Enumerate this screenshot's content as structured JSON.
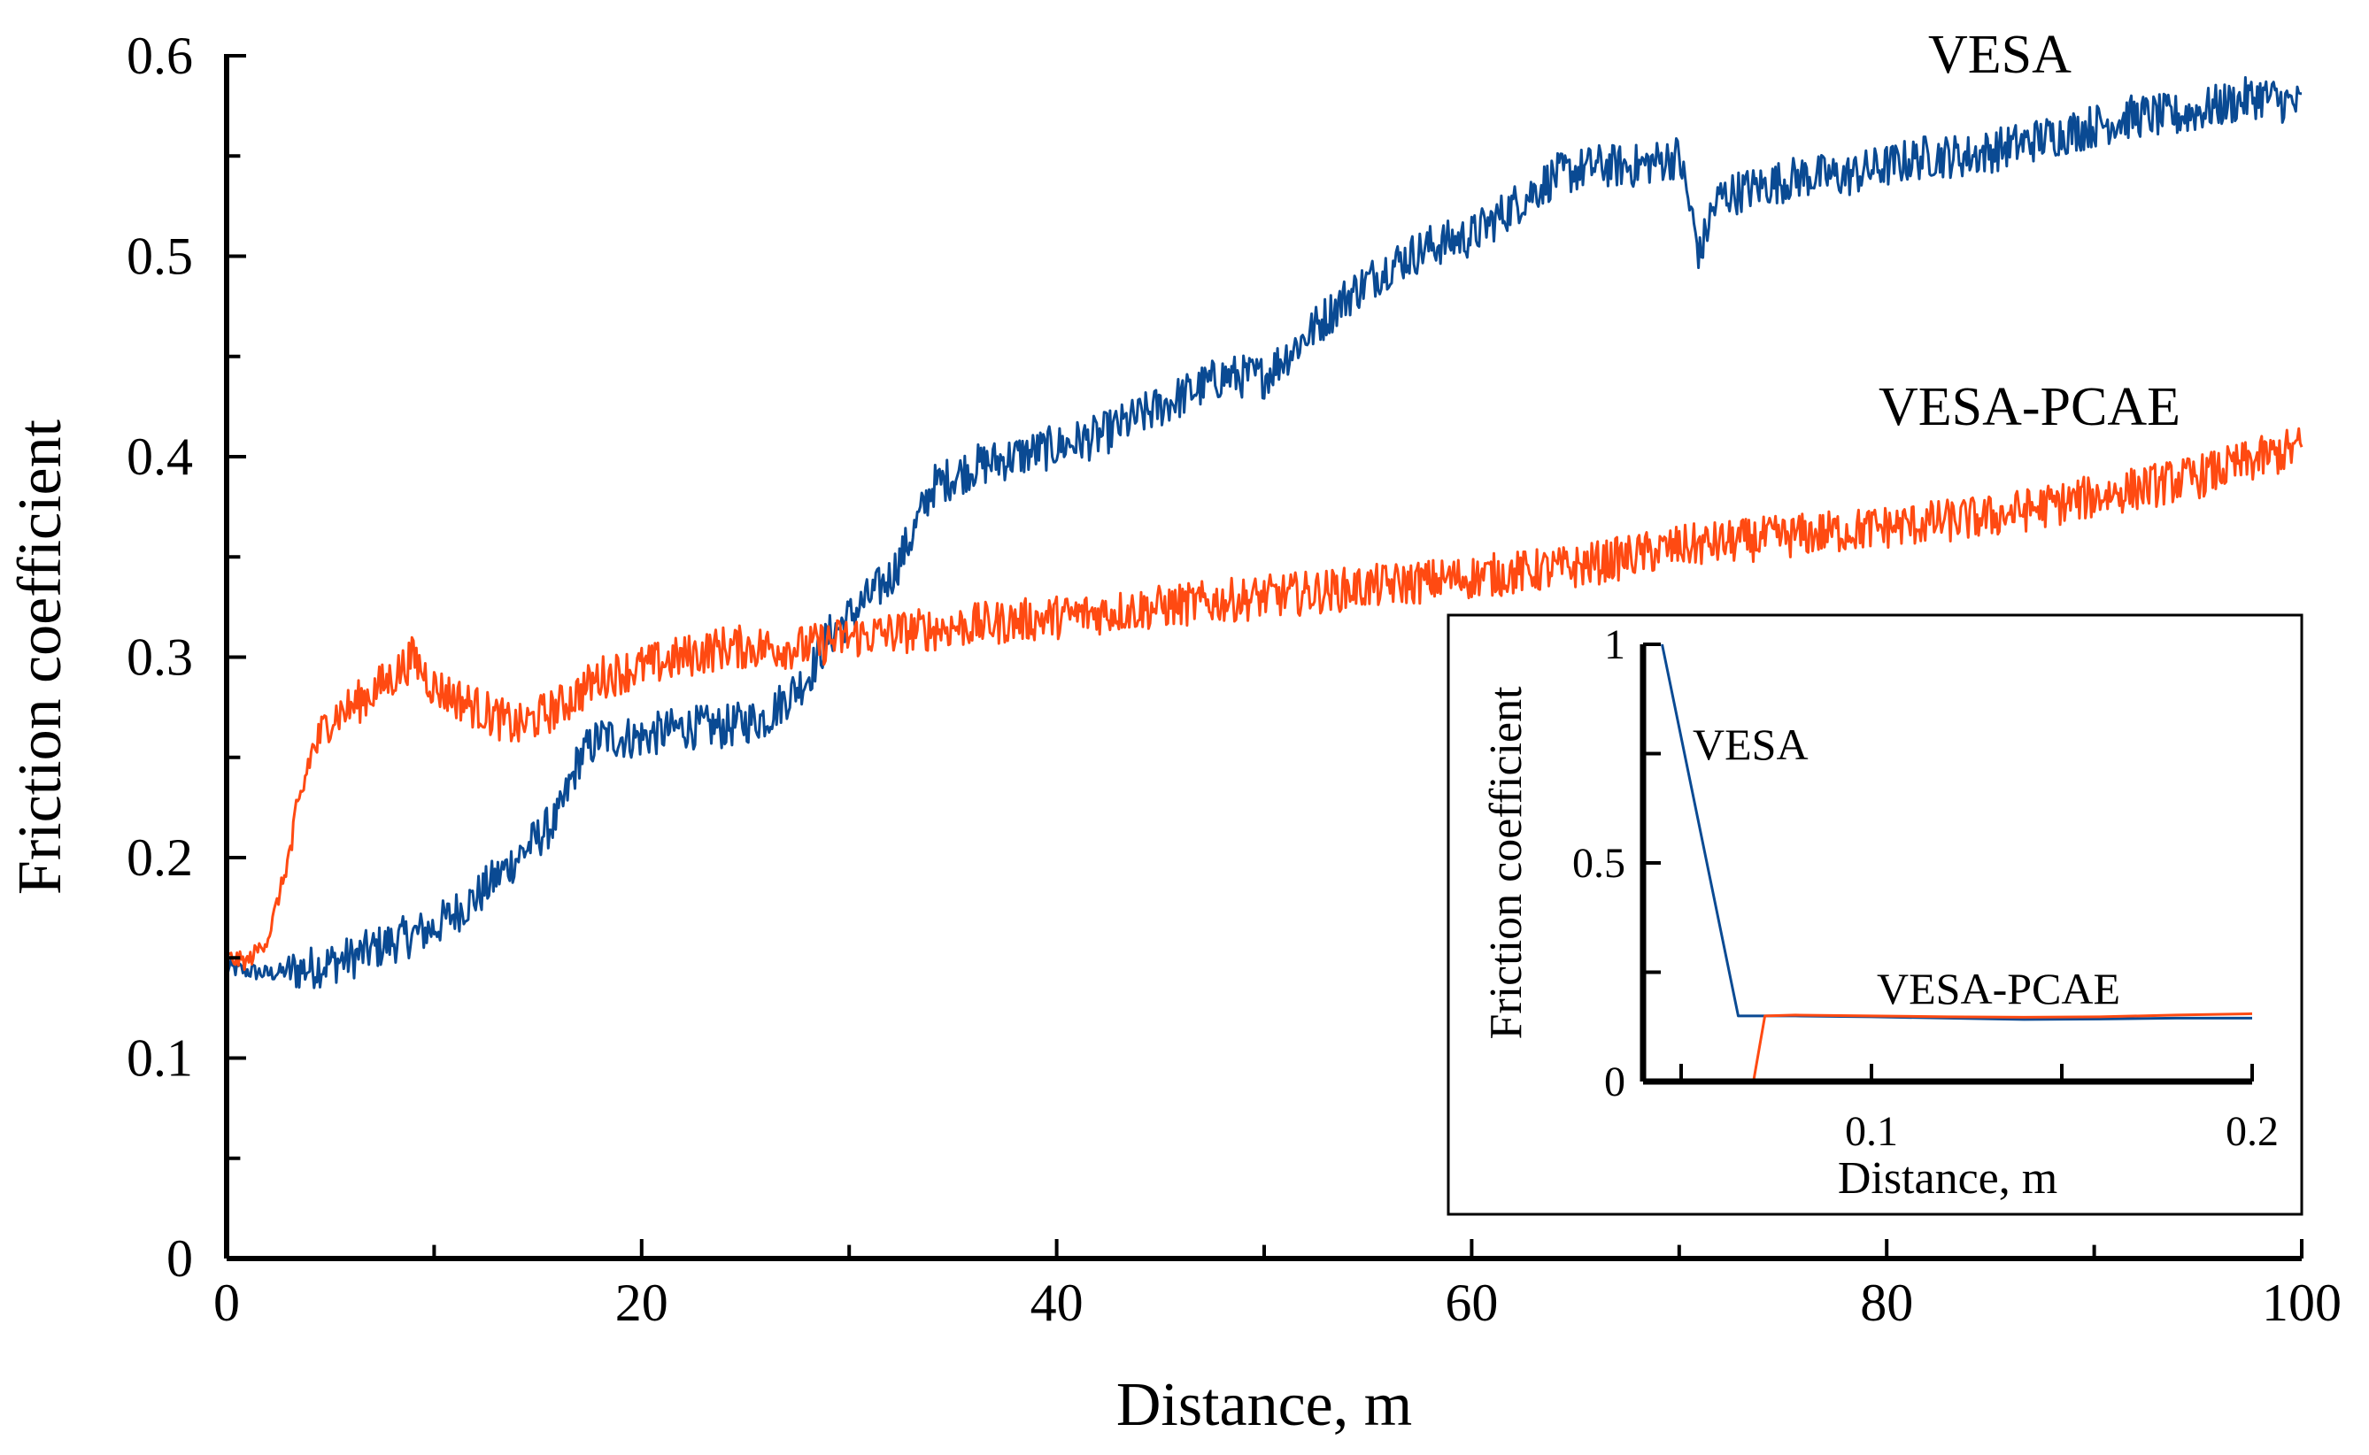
{
  "chart_data": [
    {
      "type": "line",
      "title": "",
      "xlabel": "Distance, m",
      "ylabel": "Friction coefficient",
      "xlim": [
        0,
        100
      ],
      "ylim": [
        0,
        0.6
      ],
      "x_ticks": [
        0,
        20,
        40,
        60,
        80,
        100
      ],
      "x_tick_labels": [
        "0",
        "20",
        "40",
        "60",
        "80",
        "100"
      ],
      "y_ticks": [
        0,
        0.1,
        0.2,
        0.3,
        0.4,
        0.5,
        0.6
      ],
      "y_tick_labels": [
        "0",
        "0.1",
        "0.2",
        "0.3",
        "0.4",
        "0.5",
        "0.6"
      ],
      "grid": false,
      "series": [
        {
          "name": "VESA",
          "color": "#0a4a93",
          "x": [
            0,
            2,
            4,
            6,
            8,
            10,
            12,
            14,
            16,
            17,
            18,
            20,
            22,
            24,
            26,
            28,
            29,
            30,
            32,
            33,
            34,
            36,
            38,
            40,
            42,
            44,
            46,
            48,
            50,
            52,
            54,
            56,
            58,
            60,
            62,
            64,
            66,
            68,
            70,
            71,
            71.5,
            72,
            74,
            76,
            78,
            80,
            82,
            84,
            86,
            88,
            90,
            92,
            94,
            96,
            98,
            100
          ],
          "values": [
            0.145,
            0.142,
            0.145,
            0.15,
            0.158,
            0.165,
            0.18,
            0.2,
            0.22,
            0.25,
            0.26,
            0.26,
            0.265,
            0.265,
            0.27,
            0.29,
            0.31,
            0.32,
            0.34,
            0.36,
            0.385,
            0.395,
            0.4,
            0.405,
            0.41,
            0.42,
            0.43,
            0.44,
            0.44,
            0.46,
            0.48,
            0.495,
            0.505,
            0.51,
            0.525,
            0.54,
            0.545,
            0.545,
            0.55,
            0.5,
            0.52,
            0.53,
            0.535,
            0.54,
            0.54,
            0.545,
            0.55,
            0.55,
            0.555,
            0.56,
            0.565,
            0.57,
            0.57,
            0.575,
            0.58,
            0.575
          ]
        },
        {
          "name": "VESA-PCAE",
          "color": "#ff4a12",
          "x": [
            0,
            1,
            2,
            3,
            4,
            5,
            6,
            8,
            9,
            10,
            12,
            14,
            16,
            18,
            20,
            22,
            24,
            26,
            28,
            30,
            35,
            40,
            45,
            50,
            55,
            60,
            65,
            70,
            75,
            80,
            85,
            90,
            95,
            100
          ],
          "values": [
            0.15,
            0.148,
            0.16,
            0.2,
            0.25,
            0.27,
            0.275,
            0.29,
            0.3,
            0.285,
            0.275,
            0.265,
            0.275,
            0.29,
            0.295,
            0.3,
            0.305,
            0.305,
            0.305,
            0.31,
            0.315,
            0.32,
            0.325,
            0.33,
            0.335,
            0.34,
            0.345,
            0.355,
            0.36,
            0.365,
            0.37,
            0.38,
            0.39,
            0.405
          ]
        }
      ],
      "annotations": [
        "VESA",
        "VESA-PCAE"
      ]
    },
    {
      "type": "line",
      "title": "",
      "placement": "inset lower-right",
      "xlabel": "Distance, m",
      "ylabel": "Friction coefficient",
      "xlim": [
        0.04,
        0.2
      ],
      "ylim": [
        0,
        1
      ],
      "x_ticks": [
        0.05,
        0.1,
        0.15,
        0.2
      ],
      "x_tick_labels": [
        "",
        "0.1",
        "",
        "0.2"
      ],
      "y_ticks": [
        0,
        0.25,
        0.5,
        0.75,
        1
      ],
      "y_tick_labels": [
        "0",
        "",
        "0.5",
        "",
        "1"
      ],
      "grid": false,
      "series": [
        {
          "name": "VESA",
          "color": "#0a4a93",
          "x": [
            0.045,
            0.065,
            0.08,
            0.1,
            0.12,
            0.14,
            0.16,
            0.18,
            0.2
          ],
          "values": [
            1,
            0.15,
            0.15,
            0.148,
            0.145,
            0.142,
            0.143,
            0.145,
            0.145
          ]
        },
        {
          "name": "VESA-PCAE",
          "color": "#ff4a12",
          "x": [
            0.069,
            0.072,
            0.08,
            0.1,
            0.12,
            0.14,
            0.16,
            0.18,
            0.2
          ],
          "values": [
            0,
            0.15,
            0.152,
            0.15,
            0.148,
            0.147,
            0.148,
            0.152,
            0.155
          ]
        }
      ],
      "annotations": [
        "VESA",
        "VESA-PCAE"
      ]
    }
  ]
}
